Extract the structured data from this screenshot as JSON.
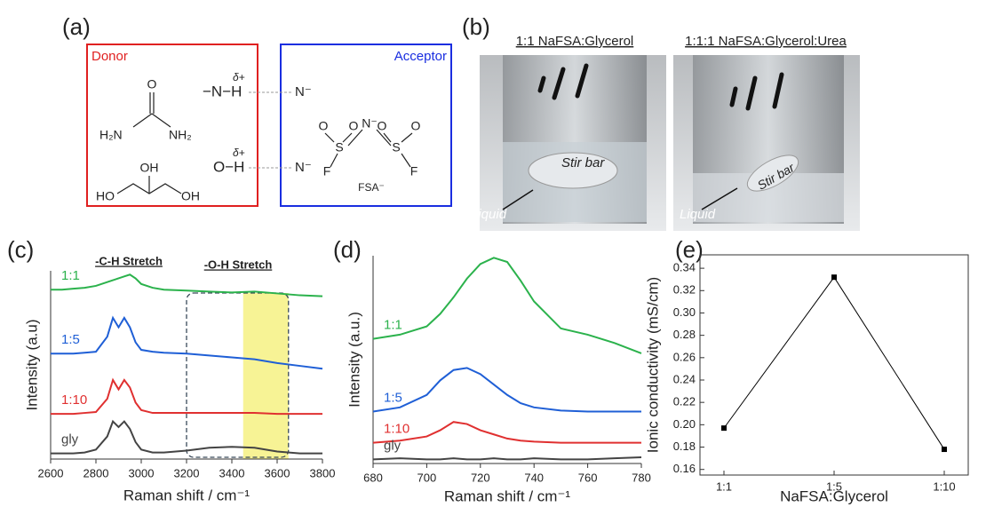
{
  "panels": {
    "a": {
      "label": "(a)",
      "donor": "Donor",
      "acceptor": "Acceptor",
      "nh_bond": "−N−H",
      "oh_bond": "O−H",
      "delta": [
        "δ+",
        "δ+"
      ],
      "anion": [
        "N⁻",
        "N⁻"
      ],
      "urea_atoms": [
        "O",
        "H₂N",
        "NH₂"
      ],
      "glycerol_atoms": [
        "OH",
        "HO",
        "OH"
      ],
      "fsa_atoms": [
        "O",
        "O",
        "N⁻",
        "O",
        "O",
        "S",
        "S",
        "F",
        "F"
      ],
      "fsa_name": "FSA⁻"
    },
    "b": {
      "label": "(b)",
      "captions": [
        "1:1 NaFSA:Glycerol",
        "1:1:1 NaFSA:Glycerol:Urea"
      ],
      "stir_bar": [
        "Stir bar",
        "Stir bar"
      ],
      "liquid": [
        "Liquid",
        "Liquid"
      ]
    }
  },
  "chart_data": [
    {
      "type": "line",
      "panel_label": "(c)",
      "x": [
        2600,
        2650,
        2700,
        2750,
        2800,
        2850,
        2875,
        2900,
        2925,
        2950,
        2975,
        3000,
        3050,
        3100,
        3200,
        3300,
        3400,
        3500,
        3600,
        3700,
        3800
      ],
      "xlim": [
        2600,
        3800
      ],
      "xticks": [
        2600,
        2800,
        3000,
        3200,
        3400,
        3600,
        3800
      ],
      "ylim": [
        0,
        100
      ],
      "xlabel": "Raman shift / cm⁻¹",
      "ylabel": "Intensity (a.u)",
      "annotations": [
        "-C-H Stretch",
        "-O-H Stretch"
      ],
      "dashed_box": [
        3200,
        3650
      ],
      "highlight": [
        3450,
        3650
      ],
      "series": [
        {
          "name": "1:1",
          "color": "#2bb24c",
          "values": [
            90,
            90,
            90.5,
            91,
            92,
            94,
            95,
            96,
            97,
            98,
            96,
            93,
            91,
            90,
            89.5,
            89,
            88.5,
            89,
            88,
            87,
            86.5
          ]
        },
        {
          "name": "1:5",
          "color": "#1f5fd6",
          "values": [
            56,
            56,
            56,
            56.5,
            57,
            65,
            75,
            70,
            75,
            70,
            62,
            58,
            57,
            56.5,
            56,
            55,
            54,
            53,
            51,
            49.5,
            48
          ]
        },
        {
          "name": "1:10",
          "color": "#e03030",
          "values": [
            24,
            24,
            24,
            24.5,
            25,
            32,
            42,
            37,
            42,
            38,
            30,
            26,
            24.5,
            24.5,
            24.5,
            24.5,
            24.5,
            24.5,
            24,
            24,
            24
          ]
        },
        {
          "name": "gly",
          "color": "#444444",
          "values": [
            3,
            3,
            3,
            3.5,
            5,
            12,
            20,
            17,
            20,
            16,
            9,
            5,
            3.5,
            3.5,
            4.5,
            6,
            6.5,
            6,
            4,
            3,
            3
          ]
        }
      ]
    },
    {
      "type": "line",
      "panel_label": "(d)",
      "x": [
        680,
        690,
        700,
        705,
        710,
        715,
        720,
        725,
        730,
        735,
        740,
        750,
        760,
        770,
        780
      ],
      "xlim": [
        680,
        780
      ],
      "xticks": [
        680,
        700,
        720,
        740,
        760,
        780
      ],
      "ylim": [
        0,
        100
      ],
      "xlabel": "Raman shift / cm⁻¹",
      "ylabel": "Intensity (a.u.)",
      "series": [
        {
          "name": "1:1",
          "color": "#2bb24c",
          "values": [
            60,
            62,
            66,
            72,
            80,
            89,
            96,
            99,
            97,
            88,
            78,
            65,
            62,
            58,
            53
          ]
        },
        {
          "name": "1:5",
          "color": "#1f5fd6",
          "values": [
            25,
            27,
            33,
            40,
            45,
            46,
            43,
            38,
            33,
            29,
            27,
            25.5,
            25,
            25,
            25
          ]
        },
        {
          "name": "1:10",
          "color": "#e03030",
          "values": [
            10,
            11,
            13,
            16,
            20,
            19,
            16,
            14,
            12,
            11,
            10.5,
            10,
            10,
            10,
            10
          ]
        },
        {
          "name": "gly",
          "color": "#444444",
          "values": [
            2,
            2.5,
            2,
            2,
            2.5,
            2,
            2,
            2.5,
            2,
            2,
            2.5,
            2,
            2,
            2.5,
            3
          ]
        }
      ]
    },
    {
      "type": "categoryline",
      "panel_label": "(e)",
      "categories": [
        "1:1",
        "1:5",
        "1:10"
      ],
      "values": [
        0.197,
        0.332,
        0.178
      ],
      "color": "#000000",
      "ylim": [
        0.155,
        0.352
      ],
      "yticks": [
        0.16,
        0.18,
        {
          "value": 0.2,
          "label": "0.20"
        },
        0.22,
        0.24,
        0.26,
        0.28,
        {
          "value": 0.3,
          "label": "0.30"
        },
        0.32,
        0.34
      ],
      "xlabel": "NaFSA:Glycerol",
      "ylabel": "Ionic conductivity (mS/cm)"
    }
  ]
}
